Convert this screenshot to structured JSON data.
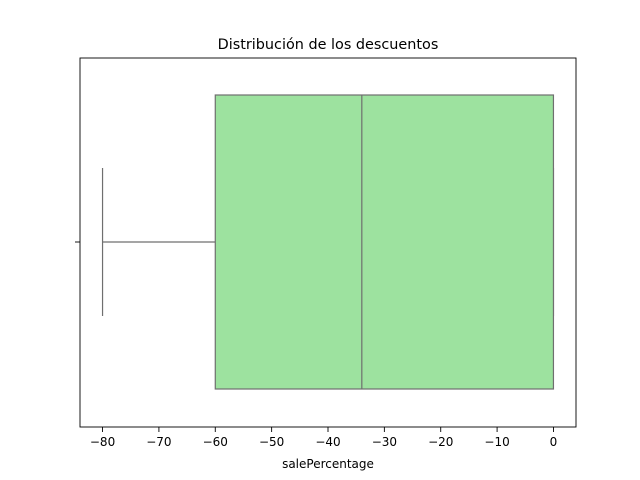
{
  "chart_data": {
    "type": "box",
    "orientation": "horizontal",
    "title": "Distribución de los descuentos",
    "xlabel": "salePercentage",
    "ylabel": "",
    "xlim": [
      -84,
      4
    ],
    "xticks": [
      -80,
      -70,
      -60,
      -50,
      -40,
      -30,
      -20,
      -10,
      0
    ],
    "grid": false,
    "legend": "none",
    "box": {
      "whisker_low": -80,
      "q1": -60,
      "median": -34,
      "q3": 0,
      "whisker_high": 0
    },
    "colors": {
      "box_fill": "#9de29f",
      "box_edge": "#6f6f6f"
    }
  }
}
